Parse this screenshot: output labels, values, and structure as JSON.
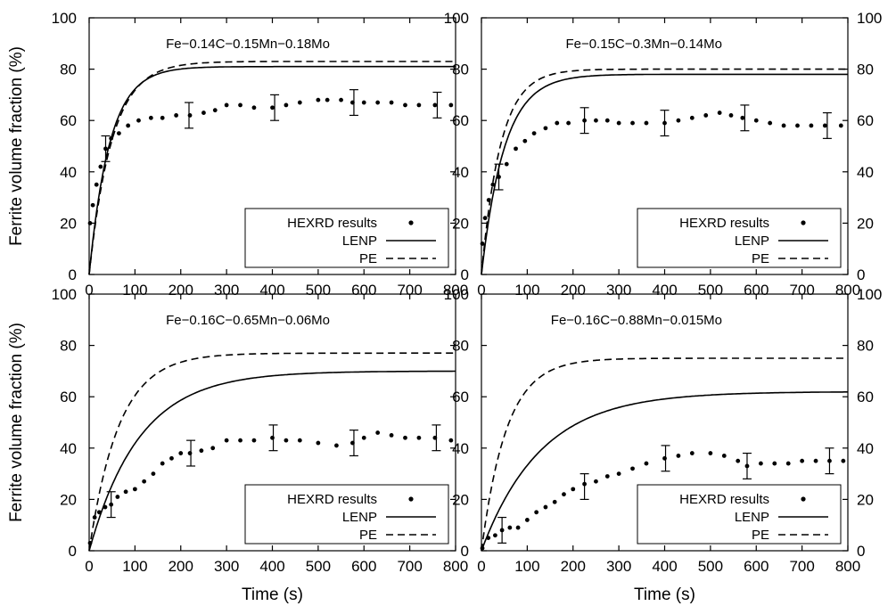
{
  "chart_data": [
    {
      "type": "scatter",
      "title": "Fe−0.14C−0.15Mn−0.18Mo",
      "xlabel": "",
      "ylabel": "Ferrite volume fraction (%)",
      "xlim": [
        0,
        800
      ],
      "ylim": [
        0,
        100
      ],
      "x_ticks": [
        "0",
        "100",
        "200",
        "300",
        "400",
        "500",
        "600",
        "700",
        "800"
      ],
      "y_ticks": [
        "0",
        "20",
        "40",
        "60",
        "80",
        "100"
      ],
      "y_ticks_right": [],
      "legend": [
        {
          "name": "HEXRD results",
          "style": "points"
        },
        {
          "name": "LENP",
          "style": "solid"
        },
        {
          "name": "PE",
          "style": "dashed"
        }
      ],
      "series": [
        {
          "name": "LENP",
          "style": "solid",
          "asymptote": 81,
          "tau": 45
        },
        {
          "name": "PE",
          "style": "dashed",
          "asymptote": 83,
          "tau": 50
        },
        {
          "name": "HEXRD results",
          "style": "points",
          "points": [
            [
              2,
              20
            ],
            [
              8,
              27
            ],
            [
              16,
              35
            ],
            [
              25,
              42
            ],
            [
              36,
              49
            ],
            [
              48,
              53
            ],
            [
              65,
              55
            ],
            [
              85,
              58
            ],
            [
              108,
              60
            ],
            [
              135,
              61
            ],
            [
              160,
              61
            ],
            [
              190,
              62
            ],
            [
              220,
              62
            ],
            [
              250,
              63
            ],
            [
              275,
              64
            ],
            [
              300,
              66
            ],
            [
              330,
              66
            ],
            [
              360,
              65
            ],
            [
              400,
              65
            ],
            [
              430,
              66
            ],
            [
              460,
              67
            ],
            [
              500,
              68
            ],
            [
              520,
              68
            ],
            [
              550,
              68
            ],
            [
              575,
              67
            ],
            [
              600,
              67
            ],
            [
              630,
              67
            ],
            [
              660,
              67
            ],
            [
              690,
              66
            ],
            [
              720,
              66
            ],
            [
              755,
              66
            ],
            [
              790,
              66
            ]
          ],
          "error_bars": [
            [
              36,
              49,
              5
            ],
            [
              218,
              62,
              5
            ],
            [
              405,
              65,
              5
            ],
            [
              578,
              67,
              5
            ],
            [
              760,
              66,
              5
            ]
          ]
        }
      ]
    },
    {
      "type": "scatter",
      "title": "Fe−0.15C−0.3Mn−0.14Mo",
      "xlabel": "",
      "ylabel": "",
      "xlim": [
        0,
        800
      ],
      "ylim": [
        0,
        100
      ],
      "x_ticks": [
        "0",
        "100",
        "200",
        "300",
        "400",
        "500",
        "600",
        "700",
        "800"
      ],
      "y_ticks": [
        "0",
        "20",
        "40",
        "60",
        "80",
        "100"
      ],
      "y_ticks_right": [
        "0",
        "20",
        "40",
        "60",
        "80",
        "100"
      ],
      "legend": [
        {
          "name": "HEXRD results",
          "style": "points"
        },
        {
          "name": "LENP",
          "style": "solid"
        },
        {
          "name": "PE",
          "style": "dashed"
        }
      ],
      "series": [
        {
          "name": "LENP",
          "style": "solid",
          "asymptote": 78,
          "tau": 50
        },
        {
          "name": "PE",
          "style": "dashed",
          "asymptote": 80,
          "tau": 42
        },
        {
          "name": "HEXRD results",
          "style": "points",
          "points": [
            [
              2,
              12
            ],
            [
              8,
              22
            ],
            [
              16,
              29
            ],
            [
              25,
              35
            ],
            [
              38,
              38
            ],
            [
              55,
              43
            ],
            [
              75,
              49
            ],
            [
              95,
              52
            ],
            [
              115,
              55
            ],
            [
              140,
              57
            ],
            [
              165,
              59
            ],
            [
              190,
              59
            ],
            [
              225,
              60
            ],
            [
              250,
              60
            ],
            [
              275,
              60
            ],
            [
              300,
              59
            ],
            [
              330,
              59
            ],
            [
              360,
              59
            ],
            [
              400,
              59
            ],
            [
              430,
              60
            ],
            [
              460,
              61
            ],
            [
              490,
              62
            ],
            [
              520,
              63
            ],
            [
              545,
              62
            ],
            [
              570,
              61
            ],
            [
              600,
              60
            ],
            [
              630,
              59
            ],
            [
              660,
              58
            ],
            [
              690,
              58
            ],
            [
              720,
              58
            ],
            [
              750,
              58
            ],
            [
              785,
              58
            ]
          ],
          "error_bars": [
            [
              38,
              38,
              5
            ],
            [
              225,
              60,
              5
            ],
            [
              400,
              59,
              5
            ],
            [
              575,
              61,
              5
            ],
            [
              755,
              58,
              5
            ]
          ]
        }
      ]
    },
    {
      "type": "scatter",
      "title": "Fe−0.16C−0.65Mn−0.06Mo",
      "xlabel": "Time (s)",
      "ylabel": "Ferrite volume fraction (%)",
      "xlim": [
        0,
        800
      ],
      "ylim": [
        0,
        100
      ],
      "x_ticks": [
        "0",
        "100",
        "200",
        "300",
        "400",
        "500",
        "600",
        "700",
        "800"
      ],
      "y_ticks": [
        "0",
        "20",
        "40",
        "60",
        "80",
        "100"
      ],
      "y_ticks_right": [],
      "legend": [
        {
          "name": "HEXRD results",
          "style": "points"
        },
        {
          "name": "LENP",
          "style": "solid"
        },
        {
          "name": "PE",
          "style": "dashed"
        }
      ],
      "series": [
        {
          "name": "LENP",
          "style": "solid",
          "asymptote": 70,
          "tau": 110
        },
        {
          "name": "PE",
          "style": "dashed",
          "asymptote": 77,
          "tau": 65
        },
        {
          "name": "HEXRD results",
          "style": "points",
          "points": [
            [
              2,
              3
            ],
            [
              12,
              13
            ],
            [
              22,
              15
            ],
            [
              35,
              17
            ],
            [
              48,
              18
            ],
            [
              62,
              21
            ],
            [
              80,
              23
            ],
            [
              100,
              24
            ],
            [
              120,
              27
            ],
            [
              140,
              30
            ],
            [
              160,
              34
            ],
            [
              180,
              36
            ],
            [
              200,
              38
            ],
            [
              220,
              38
            ],
            [
              245,
              39
            ],
            [
              270,
              40
            ],
            [
              300,
              43
            ],
            [
              330,
              43
            ],
            [
              360,
              43
            ],
            [
              400,
              44
            ],
            [
              430,
              43
            ],
            [
              460,
              43
            ],
            [
              500,
              42
            ],
            [
              540,
              41
            ],
            [
              575,
              42
            ],
            [
              600,
              44
            ],
            [
              630,
              46
            ],
            [
              660,
              45
            ],
            [
              690,
              44
            ],
            [
              720,
              44
            ],
            [
              755,
              44
            ],
            [
              790,
              43
            ]
          ],
          "error_bars": [
            [
              48,
              18,
              5
            ],
            [
              222,
              38,
              5
            ],
            [
              402,
              44,
              5
            ],
            [
              578,
              42,
              5
            ],
            [
              758,
              44,
              5
            ]
          ]
        }
      ]
    },
    {
      "type": "scatter",
      "title": "Fe−0.16C−0.88Mn−0.015Mo",
      "xlabel": "Time (s)",
      "ylabel": "",
      "xlim": [
        0,
        800
      ],
      "ylim": [
        0,
        100
      ],
      "x_ticks": [
        "0",
        "100",
        "200",
        "300",
        "400",
        "500",
        "600",
        "700",
        "800"
      ],
      "y_ticks": [
        "0",
        "20",
        "40",
        "60",
        "80",
        "100"
      ],
      "y_ticks_right": [
        "0",
        "20",
        "40",
        "60",
        "80",
        "100"
      ],
      "legend": [
        {
          "name": "HEXRD results",
          "style": "points"
        },
        {
          "name": "LENP",
          "style": "solid"
        },
        {
          "name": "PE",
          "style": "dashed"
        }
      ],
      "series": [
        {
          "name": "LENP",
          "style": "solid",
          "asymptote": 62,
          "tau": 130
        },
        {
          "name": "PE",
          "style": "dashed",
          "asymptote": 75,
          "tau": 55
        },
        {
          "name": "HEXRD results",
          "style": "points",
          "points": [
            [
              2,
              1
            ],
            [
              15,
              5
            ],
            [
              30,
              6
            ],
            [
              45,
              8
            ],
            [
              62,
              9
            ],
            [
              80,
              9
            ],
            [
              100,
              12
            ],
            [
              120,
              15
            ],
            [
              140,
              17
            ],
            [
              160,
              19
            ],
            [
              180,
              22
            ],
            [
              200,
              24
            ],
            [
              225,
              26
            ],
            [
              250,
              27
            ],
            [
              275,
              29
            ],
            [
              300,
              30
            ],
            [
              330,
              32
            ],
            [
              360,
              34
            ],
            [
              400,
              36
            ],
            [
              430,
              37
            ],
            [
              460,
              38
            ],
            [
              500,
              38
            ],
            [
              530,
              37
            ],
            [
              560,
              35
            ],
            [
              580,
              33
            ],
            [
              610,
              34
            ],
            [
              640,
              34
            ],
            [
              670,
              34
            ],
            [
              700,
              35
            ],
            [
              730,
              35
            ],
            [
              760,
              35
            ],
            [
              790,
              35
            ]
          ],
          "error_bars": [
            [
              45,
              8,
              5
            ],
            [
              225,
              25,
              5
            ],
            [
              402,
              36,
              5
            ],
            [
              580,
              33,
              5
            ],
            [
              760,
              35,
              5
            ]
          ]
        }
      ]
    }
  ]
}
